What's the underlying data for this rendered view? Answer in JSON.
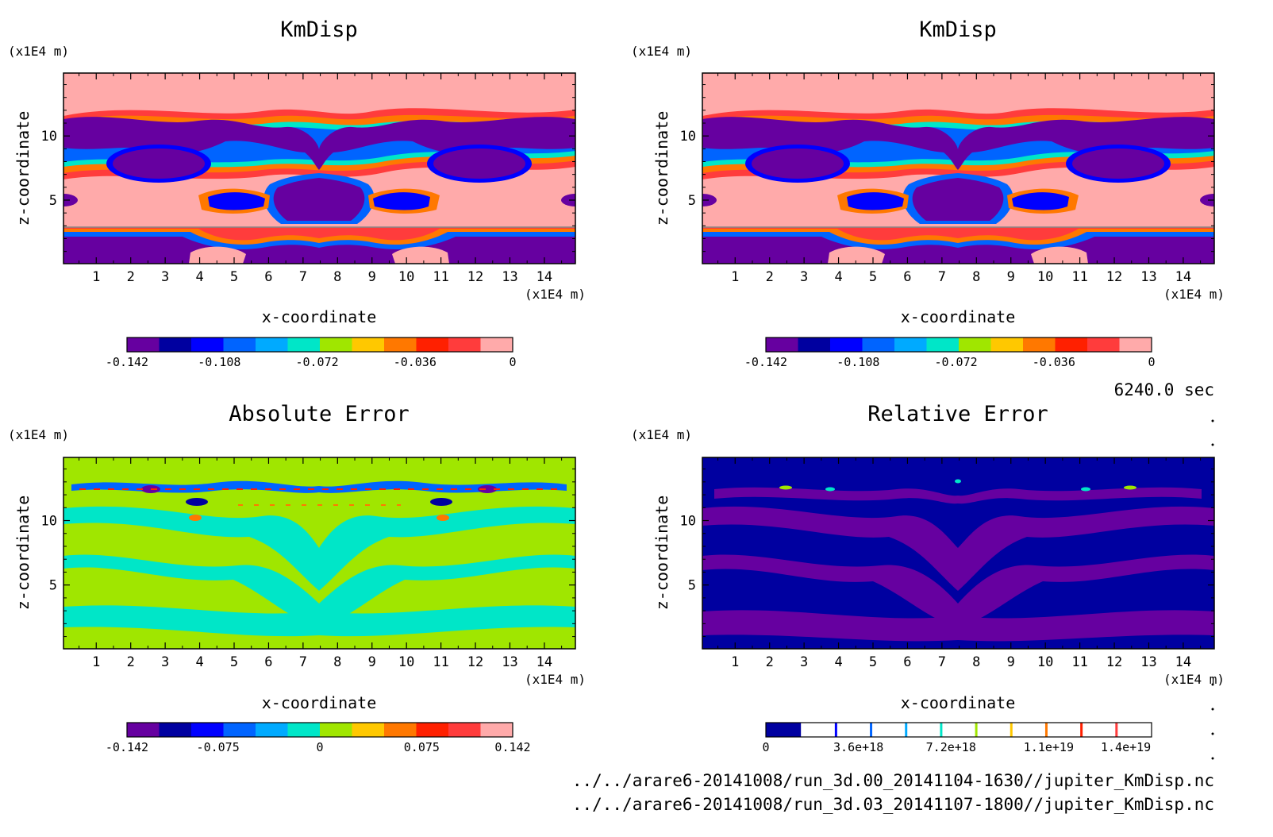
{
  "chart_data": [
    {
      "type": "heatmap",
      "title": "KmDisp",
      "xlabel": "x-coordinate",
      "ylabel": "z-coordinate",
      "x_unit": "(x1E4 m)",
      "y_unit": "(x1E4 m)",
      "xlim": [
        0.05,
        14.9
      ],
      "ylim": [
        0.05,
        14.9
      ],
      "x_ticks": [
        "1",
        "2",
        "3",
        "4",
        "5",
        "6",
        "7",
        "8",
        "9",
        "10",
        "11",
        "12",
        "13",
        "14"
      ],
      "y_ticks": [
        "5",
        "10"
      ],
      "colorbar": {
        "range": [
          -0.142,
          0
        ],
        "tick_labels": [
          "-0.142",
          "-0.108",
          "-0.072",
          "-0.036",
          "0"
        ],
        "colors": [
          "#6600a0",
          "#0000a0",
          "#0000ff",
          "#0064ff",
          "#00aaff",
          "#00e6c8",
          "#a0e600",
          "#ffc800",
          "#ff7800",
          "#ff2000",
          "#ff3c3c",
          "#ffaaaa"
        ]
      }
    },
    {
      "type": "heatmap",
      "title": "KmDisp",
      "xlabel": "x-coordinate",
      "ylabel": "z-coordinate",
      "x_unit": "(x1E4 m)",
      "y_unit": "(x1E4 m)",
      "xlim": [
        0.05,
        14.9
      ],
      "ylim": [
        0.05,
        14.9
      ],
      "x_ticks": [
        "1",
        "2",
        "3",
        "4",
        "5",
        "6",
        "7",
        "8",
        "9",
        "10",
        "11",
        "12",
        "13",
        "14"
      ],
      "y_ticks": [
        "5",
        "10"
      ],
      "colorbar": {
        "range": [
          -0.142,
          0
        ],
        "tick_labels": [
          "-0.142",
          "-0.108",
          "-0.072",
          "-0.036",
          "0"
        ],
        "colors": [
          "#6600a0",
          "#0000a0",
          "#0000ff",
          "#0064ff",
          "#00aaff",
          "#00e6c8",
          "#a0e600",
          "#ffc800",
          "#ff7800",
          "#ff2000",
          "#ff3c3c",
          "#ffaaaa"
        ]
      }
    },
    {
      "type": "heatmap",
      "title": "Absolute Error",
      "xlabel": "x-coordinate",
      "ylabel": "z-coordinate",
      "x_unit": "(x1E4 m)",
      "y_unit": "(x1E4 m)",
      "xlim": [
        0.05,
        14.9
      ],
      "ylim": [
        0.05,
        14.9
      ],
      "x_ticks": [
        "1",
        "2",
        "3",
        "4",
        "5",
        "6",
        "7",
        "8",
        "9",
        "10",
        "11",
        "12",
        "13",
        "14"
      ],
      "y_ticks": [
        "5",
        "10"
      ],
      "colorbar": {
        "range": [
          -0.142,
          0.142
        ],
        "tick_labels": [
          "-0.142",
          "-0.075",
          "0",
          "0.075",
          "0.142"
        ],
        "colors": [
          "#6600a0",
          "#0000a0",
          "#0000ff",
          "#0064ff",
          "#00aaff",
          "#00e6c8",
          "#a0e600",
          "#ffc800",
          "#ff7800",
          "#ff2000",
          "#ff3c3c",
          "#ffaaaa"
        ]
      }
    },
    {
      "type": "heatmap",
      "title": "Relative Error",
      "xlabel": "x-coordinate",
      "ylabel": "z-coordinate",
      "x_unit": "(x1E4 m)",
      "y_unit": "(x1E4 m)",
      "xlim": [
        0.05,
        14.9
      ],
      "ylim": [
        0.05,
        14.9
      ],
      "x_ticks": [
        "1",
        "2",
        "3",
        "4",
        "5",
        "6",
        "7",
        "8",
        "9",
        "10",
        "11",
        "12",
        "13",
        "14"
      ],
      "y_ticks": [
        "5",
        "10"
      ],
      "colorbar": {
        "range": [
          0,
          1.5e+19
        ],
        "tick_labels": [
          "0",
          "3.6e+18",
          "7.2e+18",
          "1.1e+19",
          "1.4e+19"
        ],
        "colors": [
          "#0000a0",
          "#ffffff"
        ],
        "line_colors": [
          "#0000ff",
          "#0064ff",
          "#00aaff",
          "#00e6c8",
          "#a0e600",
          "#ffc800",
          "#ff7800",
          "#ff2000",
          "#ff3c3c"
        ]
      }
    }
  ],
  "annotations": {
    "time_label": "6240.0 sec",
    "file_1": "../../arare6-20141008/run_3d.00_20141104-1630//jupiter_KmDisp.nc",
    "file_2": "../../arare6-20141008/run_3d.03_20141107-1800//jupiter_KmDisp.nc"
  }
}
